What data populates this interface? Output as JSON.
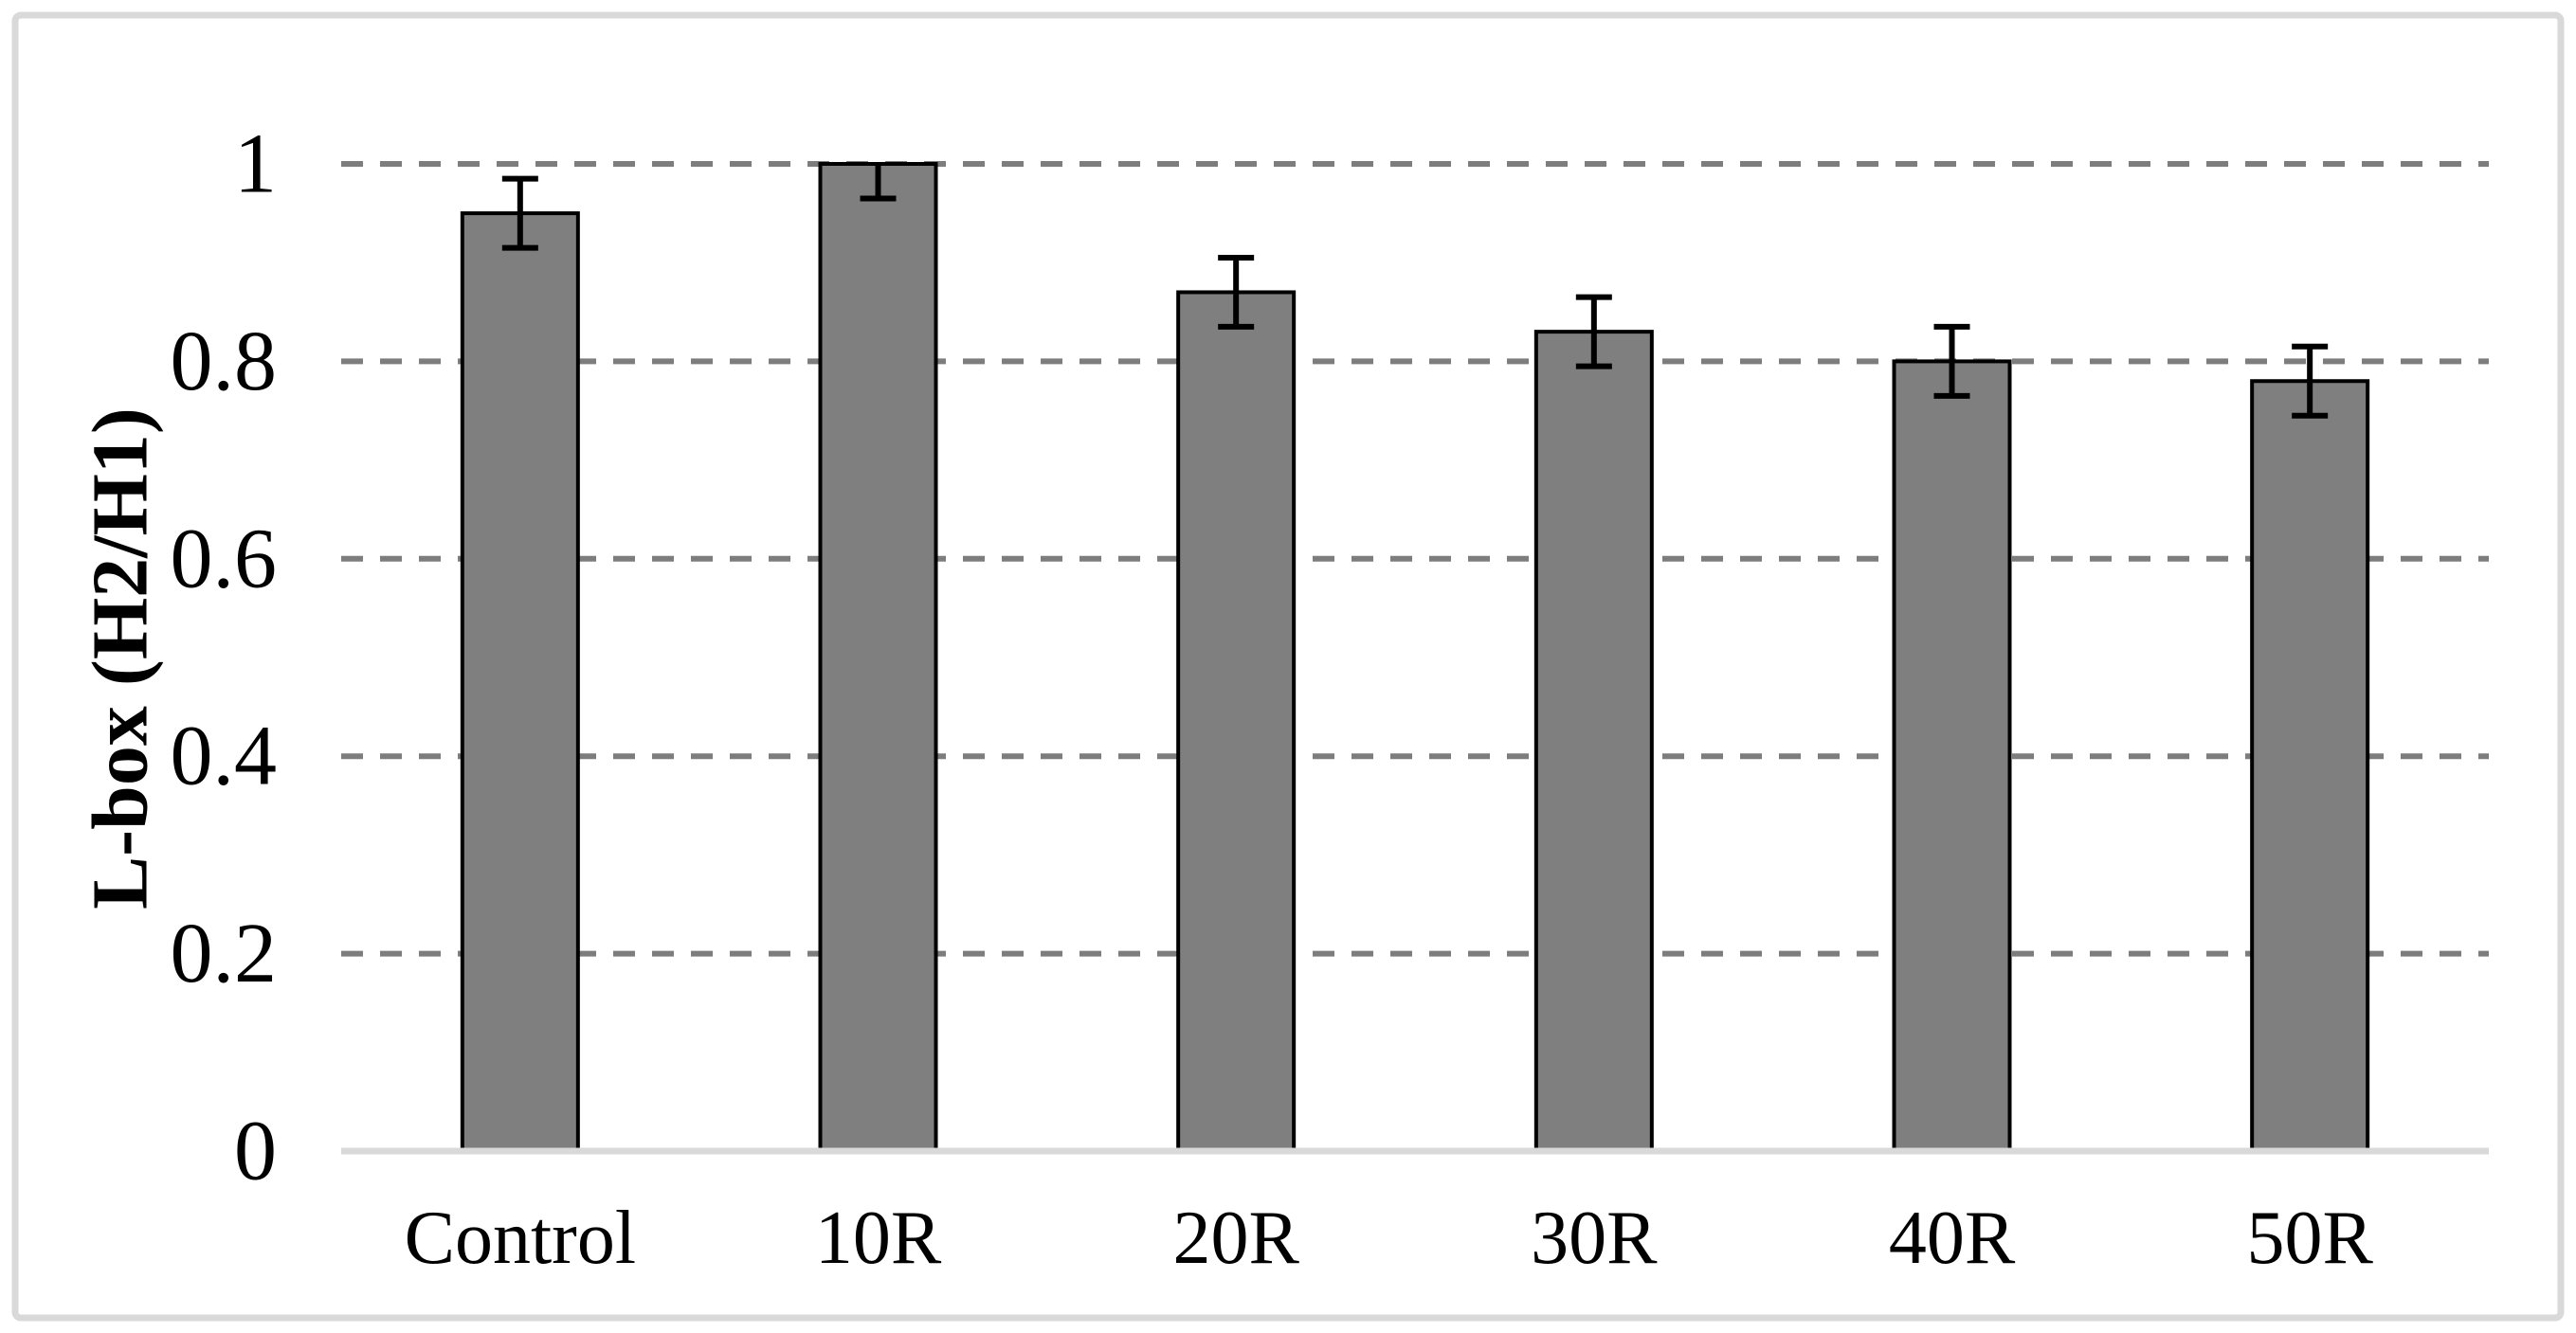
{
  "figure": {
    "background_color": "#ffffff",
    "frame_color": "#d9d9d9"
  },
  "chart_data": {
    "type": "bar",
    "title": "",
    "xlabel": "",
    "ylabel": "L-box (H2/H1)",
    "categories": [
      "Control",
      "10R",
      "20R",
      "30R",
      "40R",
      "50R"
    ],
    "values": [
      0.95,
      1.0,
      0.87,
      0.83,
      0.8,
      0.78
    ],
    "error_bars": {
      "plus": [
        0.035,
        0.0,
        0.035,
        0.035,
        0.035,
        0.035
      ],
      "minus": [
        0.035,
        0.035,
        0.035,
        0.035,
        0.035,
        0.035
      ]
    },
    "ylim": [
      0,
      1
    ],
    "yticks": [
      0,
      0.2,
      0.4,
      0.6,
      0.8,
      1
    ],
    "ytick_labels": [
      "0",
      "0.2",
      "0.4",
      "0.6",
      "0.8",
      "1"
    ],
    "grid": "horizontal-dashed",
    "legend": null,
    "colors": {
      "bar_fill": "#7f7f7f",
      "bar_border": "#000000",
      "error_bar": "#000000",
      "gridline": "#7d7d7d",
      "axis_line": "#d9d9d9",
      "text": "#000000"
    }
  }
}
